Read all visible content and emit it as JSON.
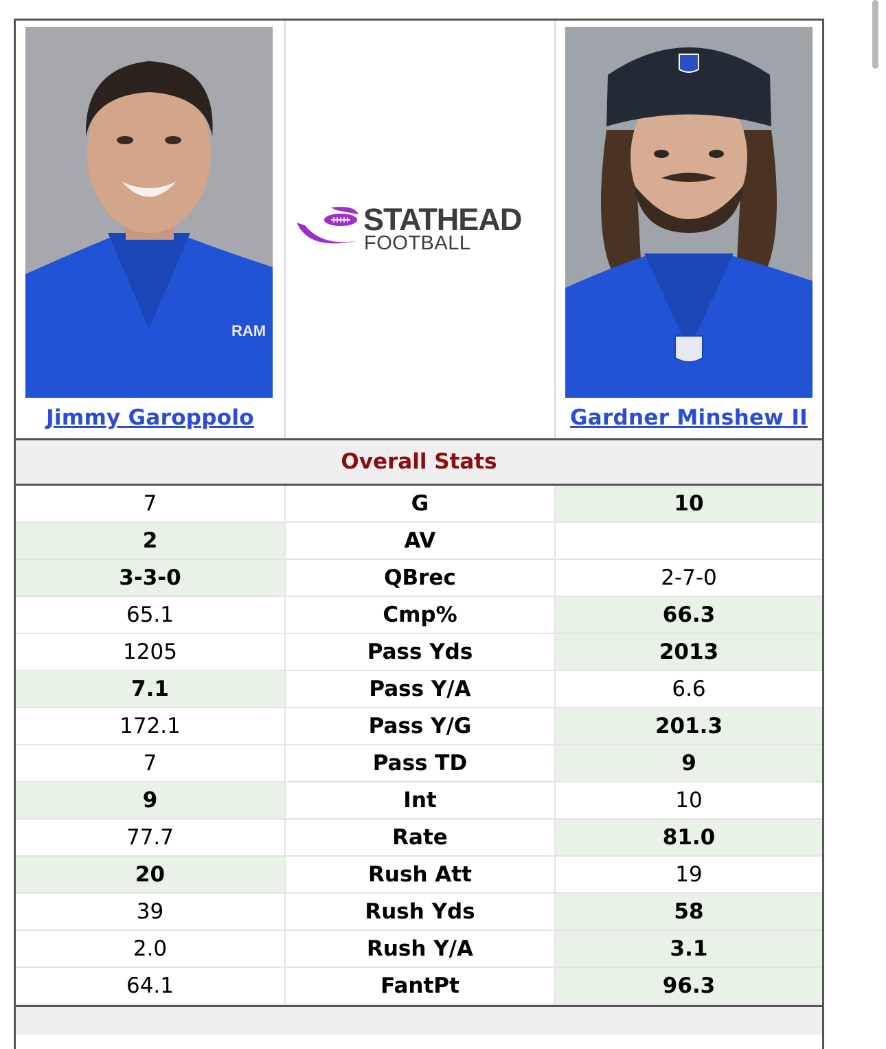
{
  "players": [
    {
      "name": "Jimmy Garoppolo",
      "side": "left"
    },
    {
      "name": "Gardner Minshew II",
      "side": "right"
    }
  ],
  "logo": {
    "title": "STATHEAD",
    "subtitle": "FOOTBALL",
    "accent_color": "#9b2fc9"
  },
  "section_title": "Overall Stats",
  "colors": {
    "winner_bg": "#e8f2e6",
    "link": "#2b4dd6",
    "section_title": "#8b0e0e"
  },
  "stats": [
    {
      "label": "G",
      "left": "7",
      "right": "10",
      "winner": "right"
    },
    {
      "label": "AV",
      "left": "2",
      "right": "",
      "winner": "left"
    },
    {
      "label": "QBrec",
      "left": "3-3-0",
      "right": "2-7-0",
      "winner": "left"
    },
    {
      "label": "Cmp%",
      "left": "65.1",
      "right": "66.3",
      "winner": "right"
    },
    {
      "label": "Pass Yds",
      "left": "1205",
      "right": "2013",
      "winner": "right"
    },
    {
      "label": "Pass Y/A",
      "left": "7.1",
      "right": "6.6",
      "winner": "left"
    },
    {
      "label": "Pass Y/G",
      "left": "172.1",
      "right": "201.3",
      "winner": "right"
    },
    {
      "label": "Pass TD",
      "left": "7",
      "right": "9",
      "winner": "right"
    },
    {
      "label": "Int",
      "left": "9",
      "right": "10",
      "winner": "left"
    },
    {
      "label": "Rate",
      "left": "77.7",
      "right": "81.0",
      "winner": "right"
    },
    {
      "label": "Rush Att",
      "left": "20",
      "right": "19",
      "winner": "left"
    },
    {
      "label": "Rush Yds",
      "left": "39",
      "right": "58",
      "winner": "right"
    },
    {
      "label": "Rush Y/A",
      "left": "2.0",
      "right": "3.1",
      "winner": "right"
    },
    {
      "label": "FantPt",
      "left": "64.1",
      "right": "96.3",
      "winner": "right"
    }
  ]
}
